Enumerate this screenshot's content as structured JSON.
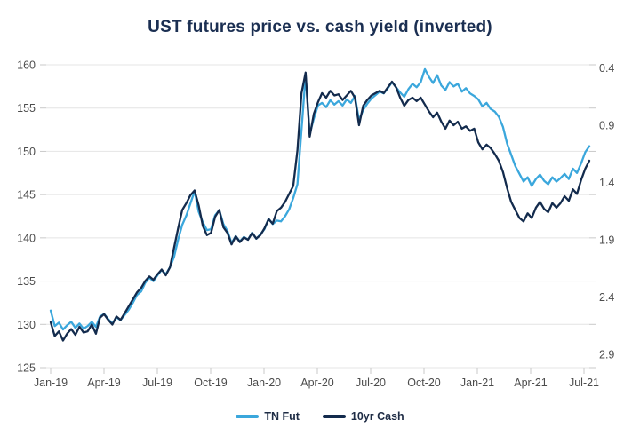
{
  "title": "UST futures price vs. cash yield (inverted)",
  "colors": {
    "tn_fut_line": "#3ba7dc",
    "cash_line": "#132b4d",
    "title_text": "#1b2f52",
    "legend_text": "#1e2c45",
    "axis_text": "#4c4c4c",
    "gridline": "#e4e4e4",
    "tick_mark": "#c9c9c9",
    "background": "#ffffff"
  },
  "legend": {
    "items": [
      {
        "label": "TN Fut",
        "color": "#3ba7dc"
      },
      {
        "label": "10yr Cash",
        "color": "#132b4d"
      }
    ]
  },
  "chart_data": {
    "type": "line",
    "title": "UST futures price vs. cash yield (inverted)",
    "grid": "horizontal",
    "legend_position": "bottom",
    "x_tick_labels": [
      "Jan-19",
      "Apr-19",
      "Jul-19",
      "Oct-19",
      "Jan-20",
      "Apr-20",
      "Jul-20",
      "Oct-20",
      "Jan-21",
      "Apr-21",
      "Jul-21"
    ],
    "x_frequency": "weekly",
    "x_range": [
      "Jan-19",
      "Jul-21"
    ],
    "left_axis": {
      "label": "",
      "min": 125,
      "max": 160,
      "step": 5,
      "ticks": [
        160,
        155,
        150,
        145,
        140,
        135,
        130,
        125
      ]
    },
    "right_axis": {
      "label": "",
      "min": 0.4,
      "max": 2.9,
      "step": 0.5,
      "inverted": true,
      "ticks": [
        0.4,
        0.9,
        1.4,
        1.9,
        2.4,
        2.9
      ]
    },
    "series": [
      {
        "name": "TN Fut",
        "axis": "left",
        "color": "#3ba7dc",
        "values": [
          131.6,
          129.8,
          130.2,
          129.4,
          129.9,
          130.3,
          129.6,
          130.1,
          129.5,
          129.8,
          130.3,
          129.7,
          130.9,
          131.2,
          130.6,
          130.1,
          130.8,
          130.5,
          131.1,
          131.7,
          132.5,
          133.4,
          133.8,
          134.8,
          135.4,
          135.0,
          135.7,
          136.3,
          135.8,
          136.6,
          137.8,
          139.8,
          141.5,
          142.6,
          144.0,
          145.4,
          143.0,
          141.8,
          140.9,
          141.0,
          142.6,
          143.2,
          141.6,
          140.8,
          139.4,
          140.2,
          139.6,
          140.1,
          139.8,
          140.6,
          139.9,
          140.4,
          141.0,
          142.2,
          141.6,
          142.0,
          141.9,
          142.5,
          143.3,
          144.6,
          146.2,
          152.5,
          158.8,
          152.0,
          153.8,
          155.3,
          155.6,
          155.1,
          155.9,
          155.4,
          155.8,
          155.3,
          156.0,
          155.6,
          156.4,
          153.6,
          154.8,
          155.5,
          156.1,
          156.5,
          156.9,
          156.7,
          157.3,
          158.0,
          157.4,
          156.8,
          156.3,
          157.2,
          157.8,
          157.4,
          158.0,
          159.5,
          158.6,
          157.9,
          158.8,
          157.6,
          157.1,
          158.0,
          157.5,
          157.8,
          156.9,
          157.3,
          156.7,
          156.4,
          156.0,
          155.2,
          155.6,
          154.9,
          154.6,
          154.0,
          152.8,
          150.9,
          149.6,
          148.3,
          147.4,
          146.5,
          147.0,
          146.0,
          146.8,
          147.3,
          146.6,
          146.2,
          147.0,
          146.5,
          146.9,
          147.4,
          146.8,
          148.0,
          147.5,
          148.6,
          149.9,
          150.6
        ]
      },
      {
        "name": "10yr Cash",
        "axis": "right",
        "color": "#132b4d",
        "values": [
          2.62,
          2.74,
          2.7,
          2.78,
          2.72,
          2.68,
          2.73,
          2.66,
          2.71,
          2.7,
          2.64,
          2.72,
          2.58,
          2.55,
          2.6,
          2.64,
          2.57,
          2.6,
          2.54,
          2.48,
          2.42,
          2.36,
          2.32,
          2.26,
          2.22,
          2.25,
          2.2,
          2.16,
          2.21,
          2.14,
          1.97,
          1.8,
          1.64,
          1.58,
          1.51,
          1.47,
          1.6,
          1.78,
          1.86,
          1.84,
          1.7,
          1.64,
          1.79,
          1.84,
          1.94,
          1.87,
          1.92,
          1.88,
          1.9,
          1.84,
          1.89,
          1.86,
          1.8,
          1.72,
          1.76,
          1.65,
          1.62,
          1.57,
          1.5,
          1.43,
          1.12,
          0.62,
          0.44,
          1.0,
          0.8,
          0.7,
          0.62,
          0.66,
          0.6,
          0.64,
          0.63,
          0.68,
          0.64,
          0.6,
          0.66,
          0.9,
          0.73,
          0.68,
          0.64,
          0.62,
          0.6,
          0.62,
          0.57,
          0.52,
          0.57,
          0.66,
          0.73,
          0.68,
          0.66,
          0.69,
          0.66,
          0.72,
          0.78,
          0.83,
          0.79,
          0.87,
          0.93,
          0.86,
          0.9,
          0.87,
          0.93,
          0.91,
          0.95,
          0.93,
          1.05,
          1.11,
          1.07,
          1.1,
          1.15,
          1.21,
          1.31,
          1.45,
          1.57,
          1.64,
          1.71,
          1.74,
          1.67,
          1.71,
          1.62,
          1.57,
          1.63,
          1.66,
          1.58,
          1.62,
          1.58,
          1.52,
          1.56,
          1.46,
          1.5,
          1.38,
          1.28,
          1.21
        ]
      }
    ]
  }
}
